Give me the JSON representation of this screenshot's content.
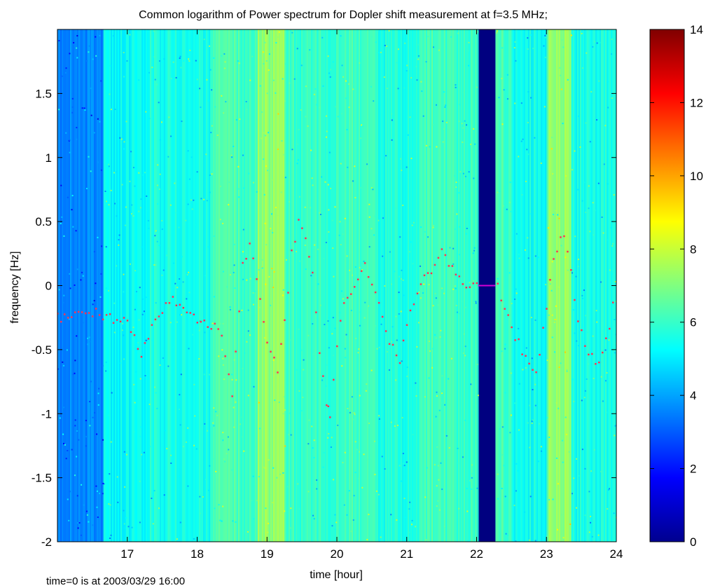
{
  "chart_data": {
    "type": "heatmap",
    "title": "Common logarithm of Power spectrum for Dopler shift measurement at f=3.5 MHz;",
    "xlabel": "time [hour]",
    "ylabel": "frequency [Hz]",
    "note": "time=0 is at 2003/03/29 16:00",
    "xlim": [
      16,
      24
    ],
    "ylim": [
      -2,
      2
    ],
    "xticks": [
      17,
      18,
      19,
      20,
      21,
      22,
      23,
      24
    ],
    "yticks": [
      -2,
      -1.5,
      -1,
      -0.5,
      0,
      0.5,
      1,
      1.5
    ],
    "colorbar": {
      "colormap": "jet",
      "range": [
        0,
        14
      ],
      "ticks": [
        0,
        2,
        4,
        6,
        8,
        10,
        12,
        14
      ]
    },
    "background_level": 5.6,
    "time_bands": [
      {
        "x_start": 16.0,
        "x_end": 16.65,
        "level": 3.6
      },
      {
        "x_start": 16.65,
        "x_end": 17.3,
        "level": 5.3
      },
      {
        "x_start": 17.3,
        "x_end": 18.2,
        "level": 5.6
      },
      {
        "x_start": 18.2,
        "x_end": 18.6,
        "level": 6.3
      },
      {
        "x_start": 18.6,
        "x_end": 18.85,
        "level": 6.0
      },
      {
        "x_start": 18.85,
        "x_end": 19.25,
        "level": 7.2
      },
      {
        "x_start": 19.25,
        "x_end": 20.0,
        "level": 6.0
      },
      {
        "x_start": 20.0,
        "x_end": 20.55,
        "level": 6.2
      },
      {
        "x_start": 20.55,
        "x_end": 21.2,
        "level": 5.7
      },
      {
        "x_start": 21.2,
        "x_end": 21.55,
        "level": 6.2
      },
      {
        "x_start": 21.55,
        "x_end": 22.02,
        "level": 6.0
      },
      {
        "x_start": 22.02,
        "x_end": 22.27,
        "level": 0.0
      },
      {
        "x_start": 22.27,
        "x_end": 22.5,
        "level": 6.2
      },
      {
        "x_start": 22.5,
        "x_end": 23.0,
        "level": 5.5
      },
      {
        "x_start": 23.0,
        "x_end": 23.35,
        "level": 7.3
      },
      {
        "x_start": 23.35,
        "x_end": 24.0,
        "level": 5.6
      }
    ],
    "doppler_trace": {
      "color": "#ff3355",
      "points": [
        [
          16.0,
          -0.25
        ],
        [
          16.2,
          -0.22
        ],
        [
          16.4,
          -0.2
        ],
        [
          16.6,
          -0.22
        ],
        [
          16.8,
          -0.25
        ],
        [
          17.0,
          -0.3
        ],
        [
          17.2,
          -0.55
        ],
        [
          17.4,
          -0.25
        ],
        [
          17.6,
          -0.1
        ],
        [
          17.8,
          -0.2
        ],
        [
          18.0,
          -0.25
        ],
        [
          18.2,
          -0.35
        ],
        [
          18.3,
          -0.3
        ],
        [
          18.4,
          -0.55
        ],
        [
          18.5,
          -0.9
        ],
        [
          18.65,
          0.2
        ],
        [
          18.75,
          0.3
        ],
        [
          18.85,
          0.05
        ],
        [
          18.95,
          -0.3
        ],
        [
          19.05,
          -0.55
        ],
        [
          19.15,
          -0.65
        ],
        [
          19.25,
          -0.3
        ],
        [
          19.35,
          0.25
        ],
        [
          19.45,
          0.5
        ],
        [
          19.55,
          0.35
        ],
        [
          19.65,
          0.1
        ],
        [
          19.75,
          -0.5
        ],
        [
          19.85,
          -0.9
        ],
        [
          19.9,
          -1.0
        ],
        [
          20.0,
          -0.5
        ],
        [
          20.1,
          -0.1
        ],
        [
          20.2,
          -0.05
        ],
        [
          20.3,
          0.05
        ],
        [
          20.4,
          0.15
        ],
        [
          20.5,
          0.0
        ],
        [
          20.6,
          -0.1
        ],
        [
          20.7,
          -0.35
        ],
        [
          20.8,
          -0.5
        ],
        [
          20.9,
          -0.6
        ],
        [
          21.0,
          -0.3
        ],
        [
          21.2,
          0.05
        ],
        [
          21.35,
          0.1
        ],
        [
          21.5,
          0.25
        ],
        [
          21.6,
          0.15
        ],
        [
          21.75,
          0.05
        ],
        [
          21.9,
          0.0
        ],
        [
          22.0,
          0.0
        ],
        [
          22.3,
          0.0
        ],
        [
          22.4,
          -0.2
        ],
        [
          22.55,
          -0.4
        ],
        [
          22.7,
          -0.55
        ],
        [
          22.85,
          -0.7
        ],
        [
          22.95,
          -0.35
        ],
        [
          23.1,
          0.2
        ],
        [
          23.2,
          0.4
        ],
        [
          23.3,
          0.3
        ],
        [
          23.45,
          -0.3
        ],
        [
          23.6,
          -0.55
        ],
        [
          23.75,
          -0.6
        ],
        [
          23.9,
          -0.3
        ],
        [
          24.0,
          0.1
        ]
      ]
    },
    "gap_line": {
      "x_start": 22.02,
      "x_end": 22.27,
      "y": 0,
      "color": "#d400d4"
    }
  }
}
